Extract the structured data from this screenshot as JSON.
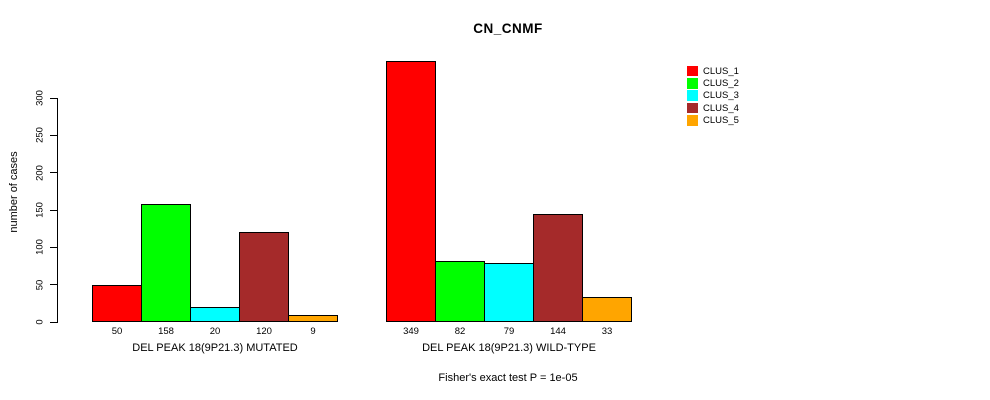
{
  "figure": {
    "background": "#ffffff",
    "text_color": "#000000"
  },
  "chart_data": {
    "type": "bar",
    "title": "CN_CNMF",
    "xlabel": "",
    "ylabel": "number of cases",
    "ylim": [
      0,
      349
    ],
    "y_ticks": [
      0,
      50,
      100,
      150,
      200,
      250,
      300
    ],
    "grid": false,
    "legend_position": "top-right",
    "annotation": "Fisher's exact test P = 1e-05",
    "categories": [
      "DEL PEAK 18(9P21.3) MUTATED",
      "DEL PEAK 18(9P21.3) WILD-TYPE"
    ],
    "series": [
      {
        "name": "CLUS_1",
        "color": "#ff0000",
        "values": [
          50,
          349
        ]
      },
      {
        "name": "CLUS_2",
        "color": "#00ff00",
        "values": [
          158,
          82
        ]
      },
      {
        "name": "CLUS_3",
        "color": "#00ffff",
        "values": [
          20,
          79
        ]
      },
      {
        "name": "CLUS_4",
        "color": "#a52a2a",
        "values": [
          120,
          144
        ]
      },
      {
        "name": "CLUS_5",
        "color": "#ffa500",
        "values": [
          9,
          33
        ]
      }
    ],
    "bar_value_labels_shown": true
  },
  "legend": {
    "items": [
      {
        "label": "CLUS_1",
        "color": "#ff0000"
      },
      {
        "label": "CLUS_2",
        "color": "#00ff00"
      },
      {
        "label": "CLUS_3",
        "color": "#00ffff"
      },
      {
        "label": "CLUS_4",
        "color": "#a52a2a"
      },
      {
        "label": "CLUS_5",
        "color": "#ffa500"
      }
    ]
  }
}
